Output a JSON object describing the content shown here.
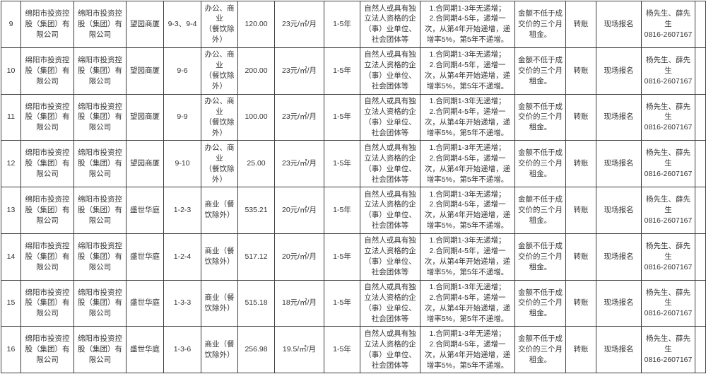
{
  "colors": {
    "border": "#3d3d3d",
    "text": "#333333",
    "background": "#ffffff"
  },
  "table": {
    "column_keys": [
      "no",
      "owner",
      "manager",
      "building",
      "unit",
      "usage",
      "area",
      "price",
      "term",
      "eligibility",
      "conditions",
      "deposit",
      "payment",
      "registration",
      "contact",
      "blank"
    ],
    "shared": {
      "owner": "绵阳市投资控股（集团）有限公司",
      "manager": "绵阳市投资控股（集团）有限公司",
      "term": "1-5年",
      "eligibility": "自然人或具有独立法人资格的企（事）业单位、社会团体等",
      "conditions": [
        "1.合同期1-3年无递增；",
        "2.合同期4-5年，递增一次，从第4年开始递增，递增率5%，第5年不递增。"
      ],
      "deposit": "金额不低于成交价的三个月租金。",
      "payment": "转账",
      "registration": "现场报名",
      "contact": [
        "杨先生、薛先生",
        "0816-2607167"
      ],
      "blank": ""
    },
    "rows": [
      {
        "no": "9",
        "building": "望园商厦",
        "unit": "9-3、9-4",
        "usage": [
          "办公、商业",
          "（餐饮除外）"
        ],
        "area": "120.00",
        "price": "23元/㎡/月"
      },
      {
        "no": "10",
        "building": "望园商厦",
        "unit": "9-6",
        "usage": [
          "办公、商业",
          "（餐饮除外）"
        ],
        "area": "200.00",
        "price": "23元/㎡/月"
      },
      {
        "no": "11",
        "building": "望园商厦",
        "unit": "9-9",
        "usage": [
          "办公、商业",
          "（餐饮除外）"
        ],
        "area": "100.00",
        "price": "23元/㎡/月"
      },
      {
        "no": "12",
        "building": "望园商厦",
        "unit": "9-10",
        "usage": [
          "办公、商业",
          "（餐饮除外）"
        ],
        "area": "25.00",
        "price": "23元/㎡/月"
      },
      {
        "no": "13",
        "building": "盛世华庭",
        "unit": "1-2-3",
        "usage": [
          "商业（餐饮除外）"
        ],
        "area": "535.21",
        "price": "20元/㎡/月"
      },
      {
        "no": "14",
        "building": "盛世华庭",
        "unit": "1-2-4",
        "usage": [
          "商业（餐饮除外）"
        ],
        "area": "517.12",
        "price": "20元/㎡/月"
      },
      {
        "no": "15",
        "building": "盛世华庭",
        "unit": "1-3-3",
        "usage": [
          "商业（餐饮除外）"
        ],
        "area": "515.18",
        "price": "18元/㎡/月"
      },
      {
        "no": "16",
        "building": "盛世华庭",
        "unit": "1-3-6",
        "usage": [
          "商业（餐饮除外）"
        ],
        "area": "256.98",
        "price": "19.5/㎡/月"
      }
    ]
  }
}
